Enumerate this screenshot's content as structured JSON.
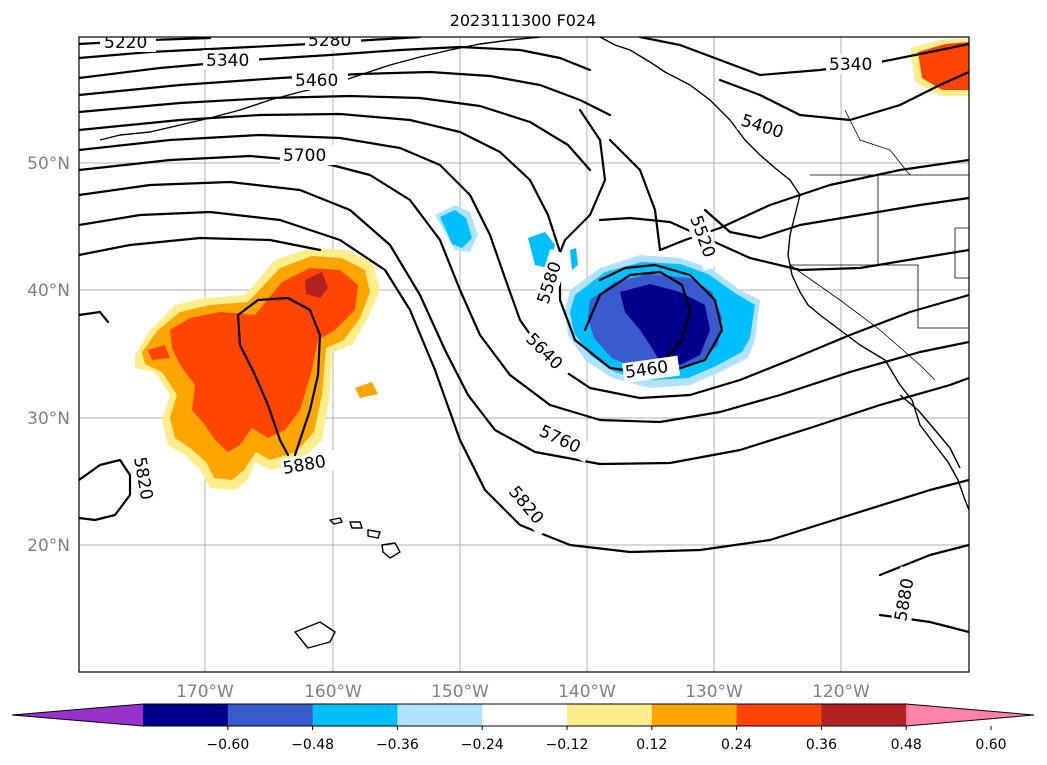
{
  "title": "2023111300 F024",
  "lat_labels": [
    "50°N",
    "40°N",
    "30°N",
    "20°N"
  ],
  "lon_labels": [
    "170°W",
    "160°W",
    "150°W",
    "140°W",
    "130°W",
    "120°W"
  ],
  "contour_labels": [
    "5220",
    "5280",
    "5340",
    "5460",
    "5700",
    "5340",
    "5400",
    "5520",
    "5580",
    "5640",
    "5460",
    "5760",
    "5820",
    "5880",
    "5820",
    "5880"
  ],
  "colorbar": {
    "ticks": [
      "−0.60",
      "−0.48",
      "−0.36",
      "−0.24",
      "−0.12",
      "0.12",
      "0.24",
      "0.36",
      "0.48",
      "0.60"
    ],
    "colors": [
      "#9932cc",
      "#00008b",
      "#3a5bcd",
      "#00bfff",
      "#b0e2ff",
      "#ffffff",
      "#ffec8b",
      "#ffa500",
      "#ff4500",
      "#b22222",
      "#ff83a8"
    ]
  }
}
